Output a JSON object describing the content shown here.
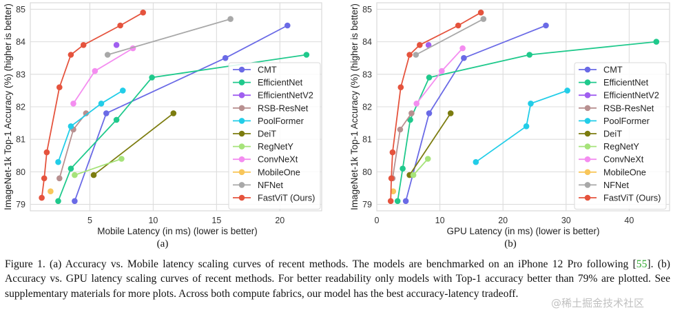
{
  "chart_data": [
    {
      "id": "a",
      "type": "line",
      "panel_label": "(a)",
      "title": "",
      "xlabel": "Mobile Latency (in ms) (lower is better)",
      "ylabel": "ImageNet-1k Top-1 Accuracy (%) (higher is better)",
      "xlim": [
        0.3,
        23.3
      ],
      "ylim": [
        78.8,
        85.2
      ],
      "xticks": [
        5,
        10,
        15,
        20
      ],
      "yticks": [
        79,
        80,
        81,
        82,
        83,
        84,
        85
      ],
      "grid": true,
      "legend_position": "lower-right",
      "series": [
        {
          "name": "CMT",
          "color": "#6a6ae6",
          "points": [
            [
              3.8,
              79.1
            ],
            [
              6.3,
              81.8
            ],
            [
              15.7,
              83.5
            ],
            [
              20.6,
              84.5
            ]
          ]
        },
        {
          "name": "EfficientNet",
          "color": "#1fc98c",
          "points": [
            [
              2.5,
              79.1
            ],
            [
              3.5,
              80.1
            ],
            [
              7.1,
              81.6
            ],
            [
              9.9,
              82.9
            ],
            [
              22.1,
              83.6
            ]
          ]
        },
        {
          "name": "EfficientNetV2",
          "color": "#a05ff0",
          "points": [
            [
              7.1,
              83.9
            ]
          ]
        },
        {
          "name": "RSB-ResNet",
          "color": "#b89090",
          "points": [
            [
              2.6,
              79.8
            ],
            [
              3.7,
              81.3
            ],
            [
              4.7,
              81.8
            ]
          ]
        },
        {
          "name": "PoolFormer",
          "color": "#22cde8",
          "points": [
            [
              2.5,
              80.3
            ],
            [
              3.5,
              81.4
            ],
            [
              5.9,
              82.1
            ],
            [
              7.6,
              82.5
            ]
          ]
        },
        {
          "name": "DeiT",
          "color": "#7c7c0f",
          "points": [
            [
              5.3,
              79.9
            ],
            [
              11.6,
              81.8
            ]
          ]
        },
        {
          "name": "RegNetY",
          "color": "#a6e37a",
          "points": [
            [
              3.8,
              79.9
            ],
            [
              7.5,
              80.4
            ]
          ]
        },
        {
          "name": "ConvNeXt",
          "color": "#f48df0",
          "points": [
            [
              3.7,
              82.1
            ],
            [
              5.4,
              83.1
            ],
            [
              8.4,
              83.8
            ]
          ]
        },
        {
          "name": "MobileOne",
          "color": "#f8c65a",
          "points": [
            [
              1.9,
              79.4
            ]
          ]
        },
        {
          "name": "NFNet",
          "color": "#a8a8a8",
          "points": [
            [
              6.4,
              83.6
            ],
            [
              16.1,
              84.7
            ]
          ]
        },
        {
          "name": "FastViT (Ours)",
          "color": "#e5533d",
          "points": [
            [
              1.2,
              79.2
            ],
            [
              1.4,
              79.8
            ],
            [
              1.6,
              80.6
            ],
            [
              2.6,
              82.6
            ],
            [
              3.5,
              83.6
            ],
            [
              4.5,
              83.9
            ],
            [
              7.4,
              84.5
            ],
            [
              9.2,
              84.9
            ]
          ]
        }
      ]
    },
    {
      "id": "b",
      "type": "line",
      "panel_label": "(b)",
      "title": "",
      "xlabel": "GPU Latency (in ms) (lower is better)",
      "ylabel": "ImageNet-1k Top-1 Accuracy (%) (higher is better)",
      "xlim": [
        0,
        46.4
      ],
      "ylim": [
        78.8,
        85.2
      ],
      "xticks": [
        0,
        10,
        20,
        30,
        40
      ],
      "yticks": [
        79,
        80,
        81,
        82,
        83,
        84,
        85
      ],
      "grid": true,
      "legend_position": "lower-right",
      "series": [
        {
          "name": "CMT",
          "color": "#6a6ae6",
          "points": [
            [
              4.6,
              79.1
            ],
            [
              8.3,
              81.8
            ],
            [
              13.8,
              83.5
            ],
            [
              26.8,
              84.5
            ]
          ]
        },
        {
          "name": "EfficientNet",
          "color": "#1fc98c",
          "points": [
            [
              3.3,
              79.1
            ],
            [
              4.1,
              80.1
            ],
            [
              5.3,
              81.6
            ],
            [
              8.3,
              82.9
            ],
            [
              24.2,
              83.6
            ],
            [
              44.3,
              84.0
            ]
          ]
        },
        {
          "name": "EfficientNetV2",
          "color": "#a05ff0",
          "points": [
            [
              8.2,
              83.9
            ]
          ]
        },
        {
          "name": "RSB-ResNet",
          "color": "#b89090",
          "points": [
            [
              2.5,
              79.8
            ],
            [
              3.7,
              81.3
            ],
            [
              5.5,
              81.8
            ]
          ]
        },
        {
          "name": "PoolFormer",
          "color": "#22cde8",
          "points": [
            [
              15.7,
              80.3
            ],
            [
              23.7,
              81.4
            ],
            [
              24.4,
              82.1
            ],
            [
              30.2,
              82.5
            ]
          ]
        },
        {
          "name": "DeiT",
          "color": "#7c7c0f",
          "points": [
            [
              5.2,
              79.9
            ],
            [
              11.7,
              81.8
            ]
          ]
        },
        {
          "name": "RegNetY",
          "color": "#a6e37a",
          "points": [
            [
              5.8,
              79.9
            ],
            [
              8.1,
              80.4
            ]
          ]
        },
        {
          "name": "ConvNeXt",
          "color": "#f48df0",
          "points": [
            [
              6.3,
              82.1
            ],
            [
              10.3,
              83.1
            ],
            [
              13.6,
              83.8
            ]
          ]
        },
        {
          "name": "MobileOne",
          "color": "#f8c65a",
          "points": [
            [
              2.6,
              79.4
            ]
          ]
        },
        {
          "name": "NFNet",
          "color": "#a8a8a8",
          "points": [
            [
              6.2,
              83.6
            ],
            [
              16.9,
              84.7
            ]
          ]
        },
        {
          "name": "FastViT (Ours)",
          "color": "#e5533d",
          "points": [
            [
              2.2,
              79.1
            ],
            [
              2.3,
              79.8
            ],
            [
              2.5,
              80.6
            ],
            [
              3.8,
              82.6
            ],
            [
              5.2,
              83.6
            ],
            [
              6.8,
              83.9
            ],
            [
              12.9,
              84.5
            ],
            [
              16.5,
              84.9
            ]
          ]
        }
      ]
    }
  ],
  "caption": {
    "prefix": "Figure 1. (a) Accuracy vs. Mobile latency scaling curves of recent methods. The models are benchmarked on an iPhone 12 Pro following [",
    "ref": "55",
    "suffix": "]. (b) Accuracy vs. GPU latency scaling curves of recent methods. For better readability only models with Top-1 accuracy better than 79% are plotted. See supplementary materials for more plots. Across both compute fabrics, our model has the best accuracy-latency tradeoff."
  },
  "watermark": "@稀土掘金技术社区"
}
